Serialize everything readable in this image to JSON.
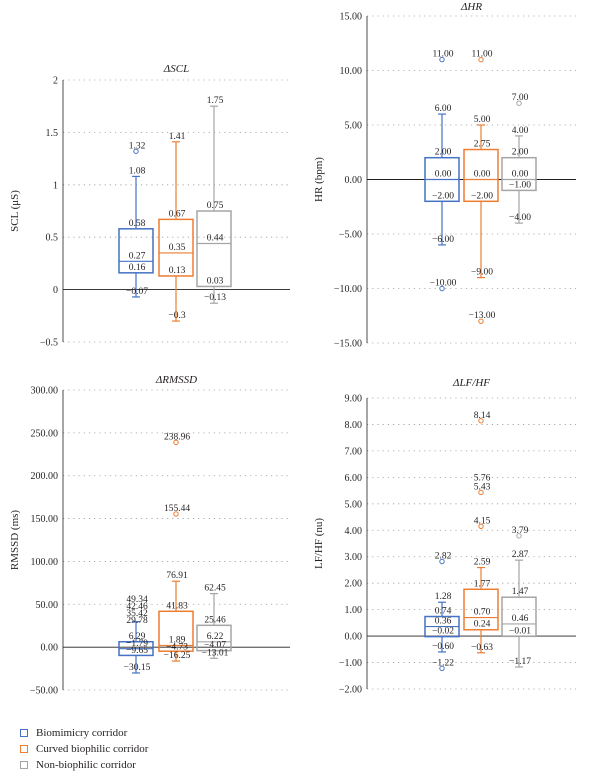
{
  "colors": {
    "biomimicry": "#4472c4",
    "curved": "#ed7d31",
    "nonbiophilic": "#a5a5a5"
  },
  "legend": [
    {
      "label": "Biomimicry corridor",
      "color_key": "biomimicry"
    },
    {
      "label": "Curved biophilic corridor",
      "color_key": "curved"
    },
    {
      "label": "Non-biophilic corridor",
      "color_key": "nonbiophilic"
    }
  ],
  "chart_data": [
    {
      "type": "box",
      "title": "ΔSCL",
      "ylabel": "SCL (μS)",
      "ylim": [
        -0.5,
        2
      ],
      "ticks": [
        -0.5,
        0,
        0.5,
        1,
        1.5,
        2
      ],
      "tick_labels": [
        "−0.5",
        "0",
        "0.5",
        "1",
        "1.5",
        "2"
      ],
      "series": [
        {
          "color_key": "biomimicry",
          "min": -0.07,
          "q1": 0.16,
          "median": 0.27,
          "q3": 0.58,
          "max": 1.08,
          "outliers": [
            1.32
          ],
          "labels": [
            {
              "v": 1.32,
              "t": "1.32"
            },
            {
              "v": 1.08,
              "t": "1.08"
            },
            {
              "v": 0.58,
              "t": "0.58"
            },
            {
              "v": 0.27,
              "t": "0.27"
            },
            {
              "v": 0.16,
              "t": "0.16"
            },
            {
              "v": -0.07,
              "t": "−0.07"
            }
          ]
        },
        {
          "color_key": "curved",
          "min": -0.3,
          "q1": 0.13,
          "median": 0.35,
          "q3": 0.67,
          "max": 1.41,
          "outliers": [],
          "labels": [
            {
              "v": 1.41,
              "t": "1.41"
            },
            {
              "v": 0.67,
              "t": "0.67"
            },
            {
              "v": 0.35,
              "t": "0.35"
            },
            {
              "v": 0.13,
              "t": "0.13"
            },
            {
              "v": -0.3,
              "t": "−0.3"
            }
          ]
        },
        {
          "color_key": "nonbiophilic",
          "min": -0.13,
          "q1": 0.03,
          "median": 0.44,
          "q3": 0.75,
          "max": 1.75,
          "outliers": [],
          "labels": [
            {
              "v": 1.75,
              "t": "1.75"
            },
            {
              "v": 0.75,
              "t": "0.75"
            },
            {
              "v": 0.44,
              "t": "0.44"
            },
            {
              "v": 0.03,
              "t": "0.03"
            },
            {
              "v": -0.13,
              "t": "−0.13"
            }
          ]
        }
      ]
    },
    {
      "type": "box",
      "title": "ΔHR",
      "ylabel": "HR (bpm)",
      "ylim": [
        -15,
        15
      ],
      "ticks": [
        -15,
        -10,
        -5,
        0,
        5,
        10,
        15
      ],
      "tick_labels": [
        "−15.00",
        "−10.00",
        "−5.00",
        "0.00",
        "5.00",
        "10.00",
        "15.00"
      ],
      "series": [
        {
          "color_key": "biomimicry",
          "min": -6,
          "q1": -2,
          "median": 0,
          "q3": 2,
          "max": 6,
          "outliers": [
            11,
            -10
          ],
          "labels": [
            {
              "v": 11,
              "t": "11.00"
            },
            {
              "v": 6,
              "t": "6.00"
            },
            {
              "v": 2,
              "t": "2.00"
            },
            {
              "v": 0,
              "t": "0.00"
            },
            {
              "v": -2,
              "t": "−2.00"
            },
            {
              "v": -6,
              "t": "−6.00"
            },
            {
              "v": -10,
              "t": "−10.00"
            }
          ]
        },
        {
          "color_key": "curved",
          "min": -9,
          "q1": -2,
          "median": 0,
          "q3": 2.75,
          "max": 5,
          "outliers": [
            11,
            -13
          ],
          "labels": [
            {
              "v": 11,
              "t": "11.00"
            },
            {
              "v": 5,
              "t": "5.00"
            },
            {
              "v": 2.75,
              "t": "2.75"
            },
            {
              "v": 0,
              "t": "0.00"
            },
            {
              "v": -2,
              "t": "−2.00"
            },
            {
              "v": -9,
              "t": "−9.00"
            },
            {
              "v": -13,
              "t": "−13.00"
            }
          ]
        },
        {
          "color_key": "nonbiophilic",
          "min": -4,
          "q1": -1,
          "median": 0,
          "q3": 2,
          "max": 4,
          "outliers": [
            7
          ],
          "labels": [
            {
              "v": 7,
              "t": "7.00"
            },
            {
              "v": 4,
              "t": "4.00"
            },
            {
              "v": 2,
              "t": "2.00"
            },
            {
              "v": 0,
              "t": "0.00"
            },
            {
              "v": -1,
              "t": "−1.00"
            },
            {
              "v": -4,
              "t": "−4.00"
            }
          ]
        }
      ]
    },
    {
      "type": "box",
      "title": "ΔRMSSD",
      "ylabel": "RMSSD (ms)",
      "ylim": [
        -50,
        300
      ],
      "ticks": [
        -50,
        0,
        50,
        100,
        150,
        200,
        250,
        300
      ],
      "tick_labels": [
        "−50.00",
        "0.00",
        "50.00",
        "100.00",
        "150.00",
        "200.00",
        "250.00",
        "300.00"
      ],
      "series": [
        {
          "color_key": "biomimicry",
          "min": -30.15,
          "q1": -9.65,
          "median": -1.79,
          "q3": 6.29,
          "max": 29.78,
          "outliers": [],
          "labels": [
            {
              "v": 49.34,
              "t": "49.34"
            },
            {
              "v": 42.46,
              "t": "42.46"
            },
            {
              "v": 35.42,
              "t": "35.42"
            },
            {
              "v": 29.78,
              "t": "29.78"
            },
            {
              "v": 6.29,
              "t": "6.29"
            },
            {
              "v": -1.79,
              "t": "−1.79"
            },
            {
              "v": -9.65,
              "t": "−9.65"
            },
            {
              "v": -30.15,
              "t": "−30.15"
            }
          ]
        },
        {
          "color_key": "curved",
          "min": -16.25,
          "q1": -4.73,
          "median": 1.89,
          "q3": 41.83,
          "max": 76.91,
          "outliers": [
            238.96,
            155.44
          ],
          "labels": [
            {
              "v": 238.96,
              "t": "238.96"
            },
            {
              "v": 155.44,
              "t": "155.44"
            },
            {
              "v": 76.91,
              "t": "76.91"
            },
            {
              "v": 41.83,
              "t": "41.83"
            },
            {
              "v": 1.89,
              "t": "1.89"
            },
            {
              "v": -4.73,
              "t": "−4.73"
            },
            {
              "v": -16.25,
              "t": "−16.25"
            }
          ]
        },
        {
          "color_key": "nonbiophilic",
          "min": -13.01,
          "q1": -4.07,
          "median": 6.22,
          "q3": 25.46,
          "max": 62.45,
          "outliers": [],
          "labels": [
            {
              "v": 62.45,
              "t": "62.45"
            },
            {
              "v": 25.46,
              "t": "25.46"
            },
            {
              "v": 6.22,
              "t": "6.22"
            },
            {
              "v": -4.07,
              "t": "−4.07"
            },
            {
              "v": -13.01,
              "t": "−13.01"
            }
          ]
        }
      ]
    },
    {
      "type": "box",
      "title": "ΔLF/HF",
      "ylabel": "LF/HF (nu)",
      "ylim": [
        -2,
        9
      ],
      "ticks": [
        -2,
        -1,
        0,
        1,
        2,
        3,
        4,
        5,
        6,
        7,
        8,
        9
      ],
      "tick_labels": [
        "−2.00",
        "−1.00",
        "0.00",
        "1.00",
        "2.00",
        "3.00",
        "4.00",
        "5.00",
        "6.00",
        "7.00",
        "8.00",
        "9.00"
      ],
      "series": [
        {
          "color_key": "biomimicry",
          "min": -0.6,
          "q1": -0.02,
          "median": 0.36,
          "q3": 0.74,
          "max": 1.28,
          "outliers": [
            2.82,
            -1.22
          ],
          "labels": [
            {
              "v": 2.82,
              "t": "2.82"
            },
            {
              "v": 1.28,
              "t": "1.28"
            },
            {
              "v": 0.74,
              "t": "0.74"
            },
            {
              "v": 0.36,
              "t": "0.36"
            },
            {
              "v": -0.02,
              "t": "−0.02"
            },
            {
              "v": -0.6,
              "t": "−0.60"
            },
            {
              "v": -1.22,
              "t": "−1.22"
            }
          ]
        },
        {
          "color_key": "curved",
          "min": -0.63,
          "q1": 0.24,
          "median": 0.7,
          "q3": 1.77,
          "max": 2.59,
          "outliers": [
            8.14,
            5.43,
            4.15
          ],
          "labels": [
            {
              "v": 8.14,
              "t": "8.14"
            },
            {
              "v": 5.76,
              "t": "5.76"
            },
            {
              "v": 5.43,
              "t": "5.43"
            },
            {
              "v": 4.15,
              "t": "4.15"
            },
            {
              "v": 2.59,
              "t": "2.59"
            },
            {
              "v": 1.77,
              "t": "1.77"
            },
            {
              "v": 0.7,
              "t": "0.70"
            },
            {
              "v": 0.24,
              "t": "0.24"
            },
            {
              "v": -0.63,
              "t": "−0.63"
            }
          ]
        },
        {
          "color_key": "nonbiophilic",
          "min": -1.17,
          "q1": -0.01,
          "median": 0.46,
          "q3": 1.47,
          "max": 2.87,
          "outliers": [
            3.79
          ],
          "labels": [
            {
              "v": 3.79,
              "t": "3.79"
            },
            {
              "v": 2.87,
              "t": "2.87"
            },
            {
              "v": 1.47,
              "t": "1.47"
            },
            {
              "v": 0.46,
              "t": "0.46"
            },
            {
              "v": -0.01,
              "t": "−0.01"
            },
            {
              "v": -1.17,
              "t": "−1.17"
            }
          ]
        }
      ]
    }
  ]
}
